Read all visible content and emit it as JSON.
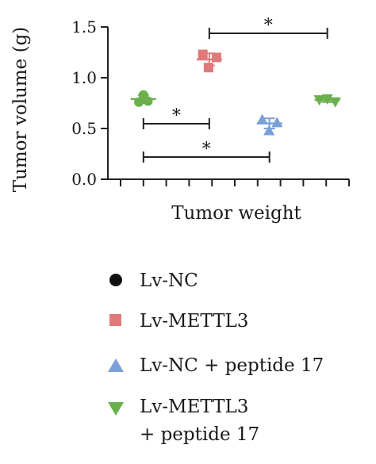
{
  "chart_data": {
    "type": "scatter",
    "title": "",
    "xlabel": "Tumor weight",
    "ylabel": "Tumor volume (g)",
    "ylim": [
      0,
      1.5
    ],
    "yticks": [
      "0.0",
      "0.5",
      "1.0",
      "1.5"
    ],
    "grid": false,
    "legend_position": "bottom",
    "series": [
      {
        "name": "Lv-NC",
        "marker": "circle",
        "color": "#6ab04c",
        "legend_color": "#111111",
        "points": [
          {
            "x": 0.8,
            "y": 0.76
          },
          {
            "x": 1.0,
            "y": 0.83
          },
          {
            "x": 1.2,
            "y": 0.77
          }
        ],
        "mean": 0.79,
        "error": 0.04
      },
      {
        "name": "Lv-METTL3",
        "marker": "square",
        "color": "#e07a7a",
        "legend_color": "#e07a7a",
        "points": [
          {
            "x": 3.6,
            "y": 1.23
          },
          {
            "x": 3.85,
            "y": 1.1
          },
          {
            "x": 4.2,
            "y": 1.2
          }
        ],
        "mean": 1.18,
        "error": 0.06
      },
      {
        "name": "Lv-NC + peptide 17",
        "marker": "triangle-up",
        "color": "#7aa0d8",
        "legend_color": "#7aa0d8",
        "points": [
          {
            "x": 6.2,
            "y": 0.59
          },
          {
            "x": 6.5,
            "y": 0.48
          },
          {
            "x": 6.85,
            "y": 0.56
          }
        ],
        "mean": 0.55,
        "error": 0.05
      },
      {
        "name": "Lv-METTL3\n+ peptide 17",
        "legend_lines": [
          "Lv-METTL3",
          "+ peptide 17"
        ],
        "marker": "triangle-down",
        "color": "#6ab04c",
        "legend_color": "#6ab04c",
        "points": [
          {
            "x": 8.7,
            "y": 0.78
          },
          {
            "x": 9.05,
            "y": 0.79
          },
          {
            "x": 9.4,
            "y": 0.76
          }
        ],
        "mean": 0.78,
        "error": 0.02
      }
    ],
    "significance": [
      {
        "from_group": 1,
        "to_group": 3,
        "label": "*"
      },
      {
        "from_group": 0,
        "to_group": 1,
        "label": "*"
      },
      {
        "from_group": 0,
        "to_group": 2,
        "label": "*"
      }
    ]
  }
}
